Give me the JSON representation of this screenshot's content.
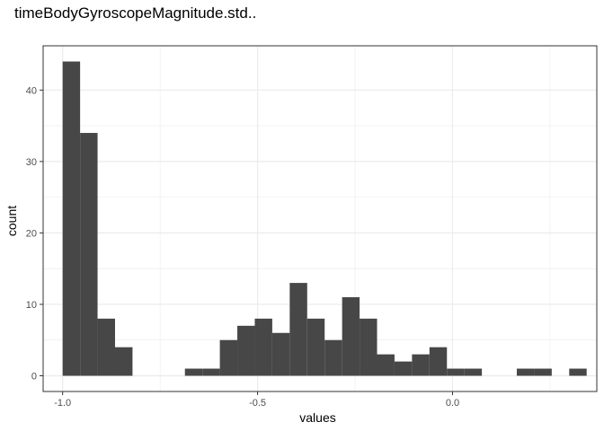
{
  "chart_data": {
    "type": "bar",
    "title": "timeBodyGyroscopeMagnitude.std..",
    "xlabel": "values",
    "ylabel": "count",
    "bin_width": 0.0448,
    "first_bin_start": -1.0,
    "values": [
      44,
      34,
      8,
      4,
      0,
      0,
      0,
      1,
      1,
      5,
      7,
      8,
      6,
      13,
      8,
      5,
      11,
      8,
      3,
      2,
      3,
      4,
      1,
      1,
      0,
      0,
      1,
      1,
      0,
      1
    ],
    "xlim": [
      -1.05,
      0.37
    ],
    "ylim": [
      -2.2,
      46.2
    ],
    "xticks": [
      {
        "value": -1.0,
        "label": "-1.0"
      },
      {
        "value": -0.5,
        "label": "-0.5"
      },
      {
        "value": 0.0,
        "label": "0.0"
      }
    ],
    "yticks": [
      {
        "value": 0,
        "label": "0"
      },
      {
        "value": 10,
        "label": "10"
      },
      {
        "value": 20,
        "label": "20"
      },
      {
        "value": 30,
        "label": "30"
      },
      {
        "value": 40,
        "label": "40"
      }
    ],
    "grid": true,
    "legend": "none",
    "bar_color": "#474747",
    "grid_color": "#ebebeb",
    "panel_border_color": "#333333"
  }
}
